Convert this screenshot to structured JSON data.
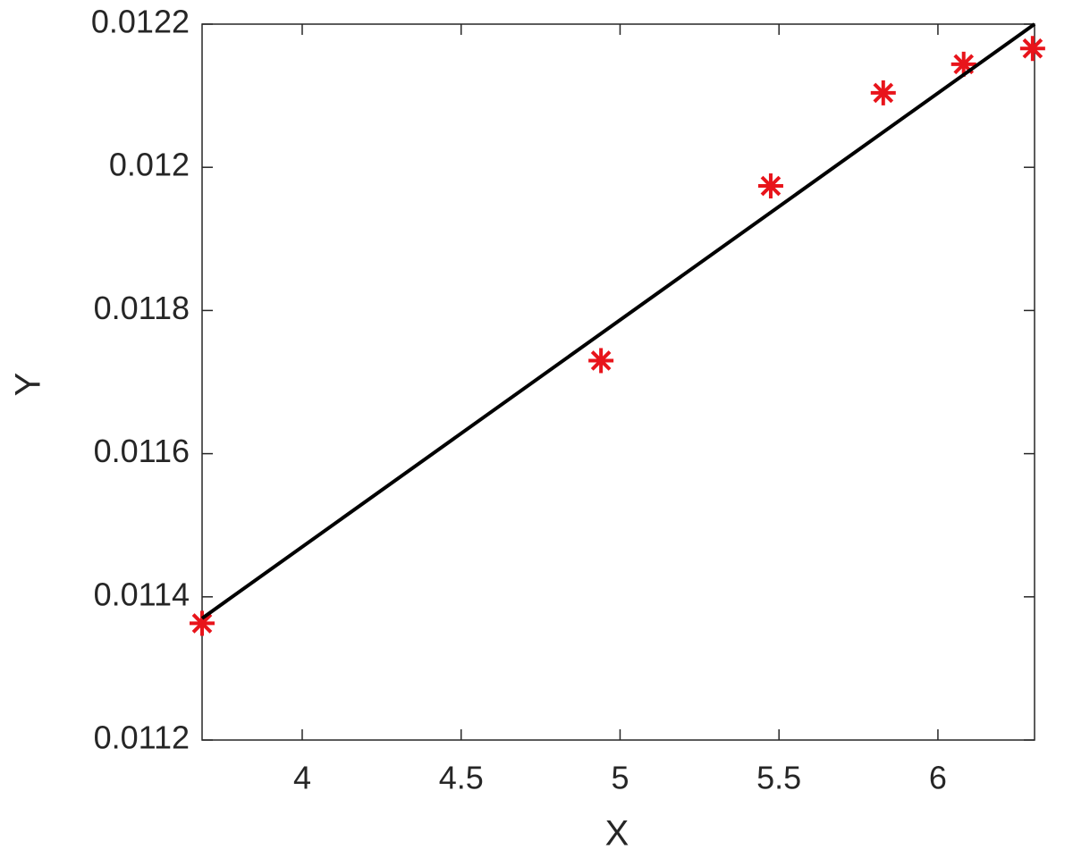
{
  "chart_data": {
    "type": "scatter",
    "x_label": "X",
    "y_label": "Y",
    "xlim": [
      3.685,
      6.304
    ],
    "ylim": [
      0.0112,
      0.0122
    ],
    "xticks": [
      4,
      4.5,
      5,
      5.5,
      6
    ],
    "yticks": [
      0.0112,
      0.0114,
      0.0116,
      0.0118,
      0.012,
      0.0122
    ],
    "series": [
      {
        "type": "scatter",
        "color": "#e8141b",
        "x": [
          3.685,
          4.94,
          5.474,
          5.828,
          6.081,
          6.298
        ],
        "values": [
          0.011363,
          0.01173,
          0.011974,
          0.012104,
          0.012144,
          0.012166
        ]
      },
      {
        "type": "line",
        "color": "#000000",
        "x": [
          3.685,
          6.304
        ],
        "values": [
          0.01137,
          0.0122
        ]
      }
    ]
  }
}
